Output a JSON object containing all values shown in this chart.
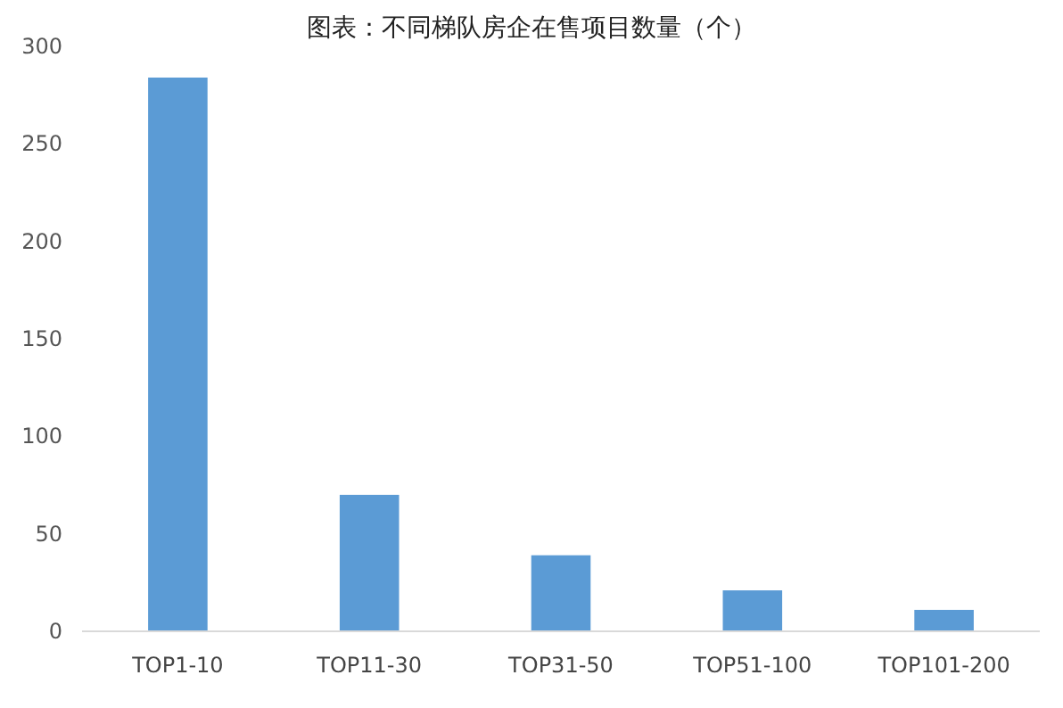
{
  "chart_data": {
    "type": "bar",
    "title": "图表：不同梯队房企在售项目数量（个）",
    "categories": [
      "TOP1-10",
      "TOP11-30",
      "TOP31-50",
      "TOP51-100",
      "TOP101-200"
    ],
    "values": [
      284,
      70,
      39,
      21,
      11
    ],
    "color": "#5b9bd5",
    "ylim": [
      0,
      300
    ],
    "yticks": [
      0,
      50,
      100,
      150,
      200,
      250,
      300
    ],
    "grid": false
  }
}
